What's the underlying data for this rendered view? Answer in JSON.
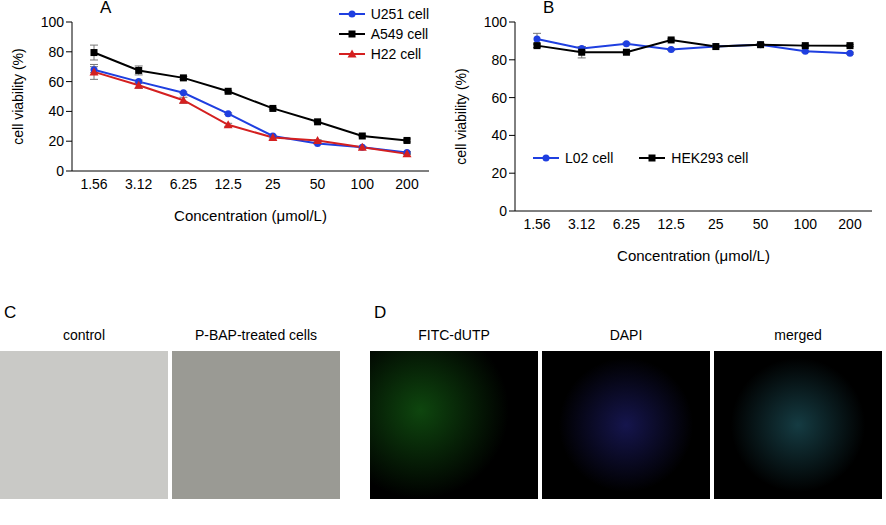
{
  "chart_data": [
    {
      "type": "line",
      "title": "A",
      "x_label": "Concentration (μmol/L)",
      "y_label": "cell viability (%)",
      "categories": [
        "1.56",
        "3.12",
        "6.25",
        "12.5",
        "25",
        "50",
        "100",
        "200"
      ],
      "series": [
        {
          "name": "U251 cell",
          "color": "#1f3fe0",
          "marker": "circle",
          "values": [
            68,
            60,
            52.5,
            38.5,
            23.5,
            18.5,
            16,
            12.5
          ],
          "errors": [
            2,
            1,
            0.5,
            0.5,
            0.5,
            0.5,
            0.5,
            0.5
          ]
        },
        {
          "name": "A549 cell",
          "color": "#000000",
          "marker": "square",
          "values": [
            79.5,
            67.5,
            62.5,
            53.5,
            42,
            33,
            23.5,
            20.5
          ],
          "errors": [
            5,
            3,
            1,
            0.5,
            0.5,
            0.5,
            0.5,
            1
          ]
        },
        {
          "name": "H22 cell",
          "color": "#d42020",
          "marker": "triangle",
          "values": [
            66.5,
            57.5,
            47.5,
            31,
            22.5,
            20.5,
            16,
            11.5
          ],
          "errors": [
            5,
            2,
            2,
            1,
            1,
            0.5,
            0.5,
            0.5
          ]
        }
      ],
      "ylim": [
        0,
        100
      ],
      "yticks": [
        0,
        20,
        40,
        60,
        80,
        100
      ],
      "legend": "upper right"
    },
    {
      "type": "line",
      "title": "B",
      "x_label": "Concentration (μmol/L)",
      "y_label": "cell viability (%)",
      "categories": [
        "1.56",
        "3.12",
        "6.25",
        "12.5",
        "25",
        "50",
        "100",
        "200"
      ],
      "series": [
        {
          "name": "L02 cell",
          "color": "#1f3fe0",
          "marker": "circle",
          "values": [
            91,
            86,
            88.5,
            85.5,
            87,
            88,
            84.5,
            83.5
          ],
          "errors": [
            3,
            1,
            0.5,
            0.5,
            0.5,
            0.5,
            0.5,
            0.5
          ]
        },
        {
          "name": "HEK293 cell",
          "color": "#000000",
          "marker": "square",
          "values": [
            87.5,
            84,
            84,
            90.5,
            87,
            88,
            87.5,
            87.5
          ],
          "errors": [
            1,
            3,
            0.5,
            0.5,
            0.5,
            0.5,
            0.5,
            0.5
          ]
        }
      ],
      "ylim": [
        0,
        100
      ],
      "yticks": [
        0,
        20,
        40,
        60,
        80,
        100
      ],
      "legend": "center left"
    }
  ],
  "images": [
    {
      "title": "C",
      "panels": [
        "control",
        "P-BAP-treated cells"
      ]
    },
    {
      "title": "D",
      "panels": [
        "FITC-dUTP",
        "DAPI",
        "merged"
      ]
    }
  ]
}
